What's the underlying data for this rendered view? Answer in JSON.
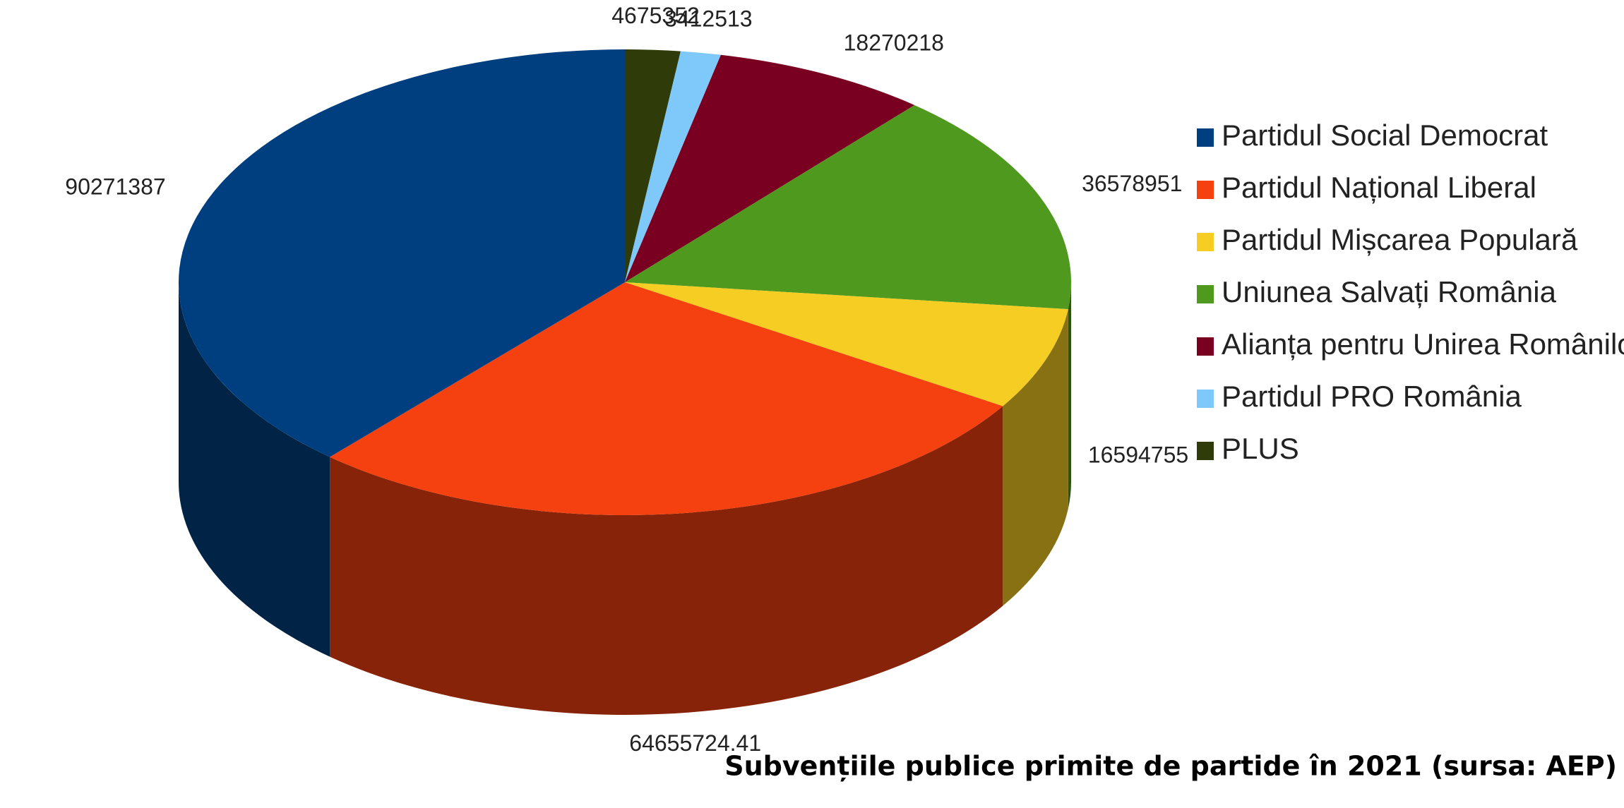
{
  "chart_data": {
    "type": "pie3d",
    "title": "Subvențiile publice primite de partide în 2021 (sursa: AEP)",
    "categories": [
      "Partidul Social Democrat",
      "Partidul Național Liberal",
      "Partidul Mișcarea Populară",
      "Uniunea Salvați România",
      "Alianța pentru Unirea Românilor",
      "Partidul PRO România",
      "PLUS"
    ],
    "values": [
      90271387,
      64655724.41,
      16594755,
      36578951,
      18270218,
      3412513,
      4675352
    ],
    "colors": [
      "#003f7f",
      "#f5400f",
      "#f6cd22",
      "#4f991f",
      "#7a0021",
      "#7fc8fa",
      "#2f3c0a"
    ],
    "legend": "right"
  }
}
